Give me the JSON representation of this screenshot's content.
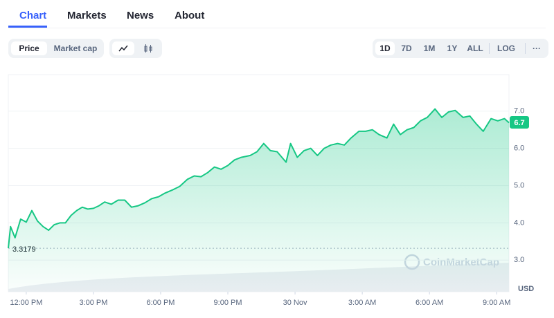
{
  "tabs": [
    "Chart",
    "Markets",
    "News",
    "About"
  ],
  "metric_toggle": [
    "Price",
    "Market cap"
  ],
  "ranges": [
    "1D",
    "7D",
    "1M",
    "1Y",
    "ALL",
    "LOG"
  ],
  "more": "···",
  "watermark": "CoinMarketCap",
  "chart_data": {
    "type": "line",
    "color": "#16c784",
    "x": [
      11.2,
      11.3,
      11.5,
      11.75,
      12.0,
      12.25,
      12.5,
      12.75,
      13.0,
      13.25,
      13.5,
      13.75,
      14.0,
      14.25,
      14.5,
      14.75,
      15.0,
      15.25,
      15.5,
      15.8,
      16.1,
      16.4,
      16.7,
      17.0,
      17.3,
      17.6,
      17.9,
      18.2,
      18.55,
      18.85,
      19.2,
      19.5,
      19.8,
      20.1,
      20.4,
      20.7,
      21.0,
      21.3,
      21.6,
      22.0,
      22.3,
      22.6,
      22.9,
      23.2,
      23.6,
      23.8,
      24.1,
      24.4,
      24.7,
      25.0,
      25.3,
      25.6,
      25.9,
      26.2,
      26.5,
      26.85,
      27.15,
      27.45,
      27.75,
      28.1,
      28.4,
      28.7,
      29.0,
      29.3,
      29.6,
      29.9,
      30.25,
      30.55,
      30.85,
      31.15,
      31.5,
      31.8,
      32.1,
      32.4,
      32.75,
      33.05,
      33.35,
      33.55
    ],
    "values": [
      3.32,
      3.9,
      3.6,
      4.1,
      4.02,
      4.33,
      4.05,
      3.9,
      3.8,
      3.95,
      4.0,
      4.0,
      4.2,
      4.33,
      4.42,
      4.37,
      4.39,
      4.46,
      4.56,
      4.5,
      4.61,
      4.61,
      4.42,
      4.46,
      4.54,
      4.65,
      4.7,
      4.8,
      4.89,
      4.98,
      5.17,
      5.26,
      5.24,
      5.35,
      5.5,
      5.44,
      5.54,
      5.69,
      5.76,
      5.81,
      5.91,
      6.13,
      5.94,
      5.91,
      5.63,
      6.13,
      5.76,
      5.94,
      6.0,
      5.81,
      6.0,
      6.09,
      6.13,
      6.09,
      6.28,
      6.46,
      6.46,
      6.5,
      6.37,
      6.28,
      6.65,
      6.37,
      6.5,
      6.56,
      6.74,
      6.83,
      7.06,
      6.83,
      6.98,
      7.02,
      6.83,
      6.87,
      6.65,
      6.46,
      6.8,
      6.74,
      6.8,
      6.69
    ],
    "xlim": [
      11.2,
      33.55
    ],
    "xticks": [
      {
        "value": 12,
        "label": "12:00 PM"
      },
      {
        "value": 15,
        "label": "3:00 PM"
      },
      {
        "value": 18,
        "label": "6:00 PM"
      },
      {
        "value": 21,
        "label": "9:00 PM"
      },
      {
        "value": 24,
        "label": "30 Nov"
      },
      {
        "value": 27,
        "label": "3:00 AM"
      },
      {
        "value": 30,
        "label": "6:00 AM"
      },
      {
        "value": 33,
        "label": "9:00 AM"
      }
    ],
    "ylim": [
      2.15,
      7.98
    ],
    "yticks": [
      {
        "value": 3,
        "label": "3.0"
      },
      {
        "value": 4,
        "label": "4.0"
      },
      {
        "value": 5,
        "label": "5.0"
      },
      {
        "value": 6,
        "label": "6.0"
      },
      {
        "value": 7,
        "label": "7.0"
      }
    ],
    "grid": true,
    "reference_line": 3.3179,
    "current_price": 6.7,
    "y_unit": "USD"
  }
}
